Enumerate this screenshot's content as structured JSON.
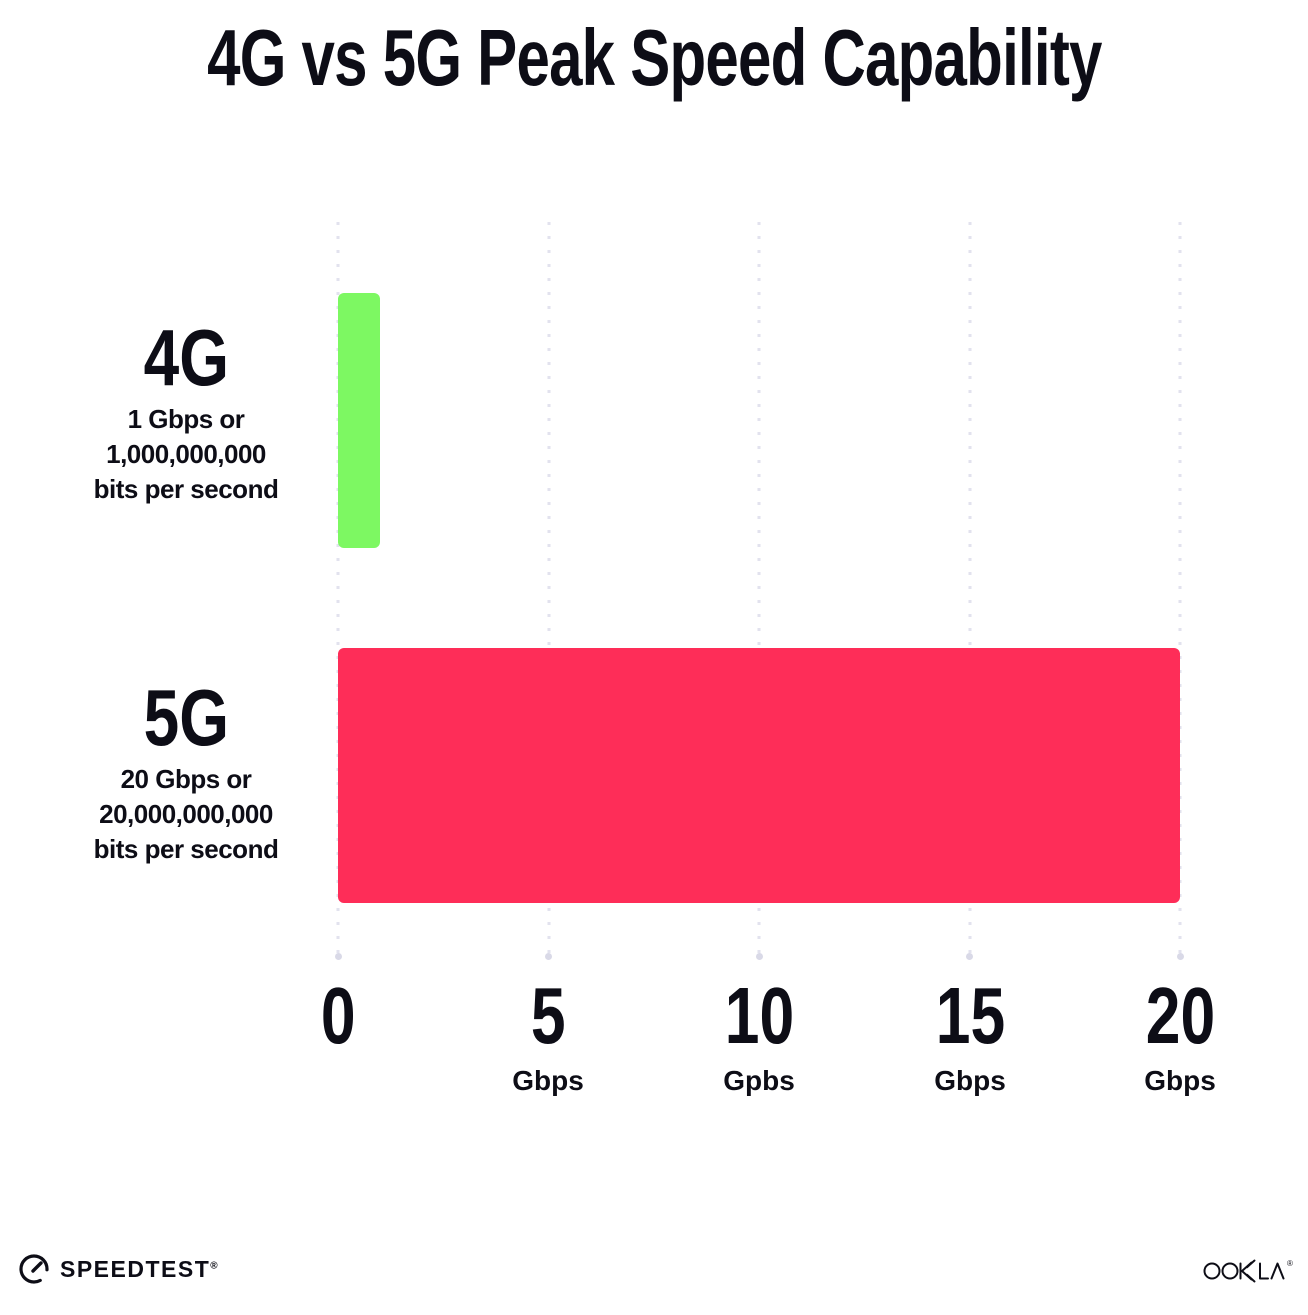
{
  "title": "4G vs 5G Peak Speed Capability",
  "chart_data": {
    "type": "bar",
    "orientation": "horizontal",
    "title": "4G vs 5G Peak Speed Capability",
    "categories": [
      "4G",
      "5G"
    ],
    "values": [
      1,
      20
    ],
    "bar_colors": [
      "#7DF862",
      "#FE2D58"
    ],
    "xlim": [
      0,
      20
    ],
    "xlabel": "Gbps",
    "grid": "dotted vertical gridlines at 0, 5, 10, 15, 20",
    "legend": "none",
    "rows": [
      {
        "name": "4G",
        "value_gbps": 1,
        "desc": [
          "1 Gbps or",
          "1,000,000,000",
          "bits per second"
        ]
      },
      {
        "name": "5G",
        "value_gbps": 20,
        "desc": [
          "20 Gbps or",
          "20,000,000,000",
          "bits per second"
        ]
      }
    ],
    "x_ticks": [
      {
        "label": "0",
        "unit": ""
      },
      {
        "label": "5",
        "unit": "Gbps"
      },
      {
        "label": "10",
        "unit": "Gpbs"
      },
      {
        "label": "15",
        "unit": "Gbps"
      },
      {
        "label": "20",
        "unit": "Gbps"
      }
    ]
  },
  "footer": {
    "speedtest": "SPEEDTEST",
    "speedtest_trademark": "®",
    "ookla": "OOKLA",
    "ookla_trademark": "®"
  },
  "colors": {
    "bar_4g": "#7DF862",
    "bar_5g": "#FE2D58",
    "text": "#0D0D16",
    "gridline": "#E2E2EE",
    "background": "#FFFFFF"
  }
}
